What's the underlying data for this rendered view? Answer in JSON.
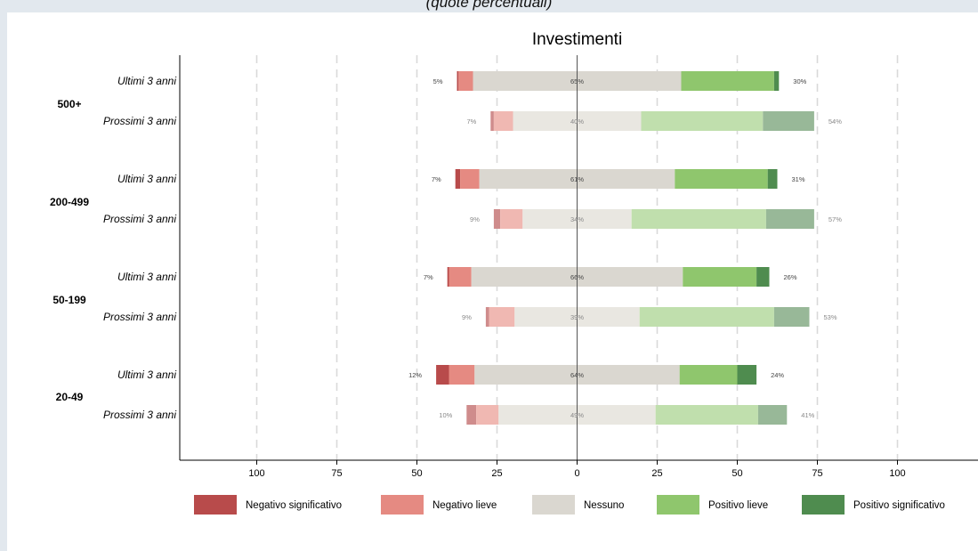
{
  "figure": {
    "caption": "(quote percentuali)"
  },
  "colors": {
    "neg_sig": "#b84b4b",
    "neg_lieve": "#e58a82",
    "nessuno": "#dad7d0",
    "pos_lieve": "#8fc66d",
    "pos_sig": "#4f8c4f",
    "neg_sig_fut": "#cf8c8c",
    "neg_lieve_fut": "#f0b8b2",
    "nessuno_fut": "#e9e7e1",
    "pos_lieve_fut": "#c0dfad",
    "pos_sig_fut": "#98b898",
    "zero_line": "#555555",
    "grid": "#d9d9d9"
  },
  "chart_data": {
    "type": "bar",
    "orientation": "horizontal",
    "stacking": "diverging",
    "title": "Investimenti",
    "xlim": [
      -125,
      125
    ],
    "xticks": [
      -100,
      -75,
      -50,
      -25,
      0,
      25,
      50,
      75,
      100
    ],
    "xtick_labels": [
      "100",
      "75",
      "50",
      "25",
      "0",
      "25",
      "50",
      "75",
      "100"
    ],
    "grid": "vertical dashed",
    "legend_position": "bottom",
    "series": [
      {
        "key": "neg_sig",
        "name": "Negativo significativo"
      },
      {
        "key": "neg_lieve",
        "name": "Negativo lieve"
      },
      {
        "key": "nessuno",
        "name": "Nessuno"
      },
      {
        "key": "pos_lieve",
        "name": "Positivo lieve"
      },
      {
        "key": "pos_sig",
        "name": "Positivo significativo"
      }
    ],
    "groups": [
      {
        "name": "500+",
        "rows": [
          {
            "label": "Ultimi 3 anni",
            "future": false,
            "neg_sig": 0.5,
            "neg_lieve": 4.5,
            "nessuno": 65,
            "pos_lieve": 29,
            "pos_sig": 1.5,
            "neg_total_label": "5%",
            "nessuno_label": "65%",
            "pos_total_label": "30%"
          },
          {
            "label": "Prossimi 3 anni",
            "future": true,
            "neg_sig": 1,
            "neg_lieve": 6,
            "nessuno": 40,
            "pos_lieve": 38,
            "pos_sig": 16,
            "neg_total_label": "7%",
            "nessuno_label": "40%",
            "pos_total_label": "54%"
          }
        ]
      },
      {
        "name": "200-499",
        "rows": [
          {
            "label": "Ultimi 3 anni",
            "future": false,
            "neg_sig": 1.5,
            "neg_lieve": 6,
            "nessuno": 61,
            "pos_lieve": 29,
            "pos_sig": 3,
            "neg_total_label": "7%",
            "nessuno_label": "61%",
            "pos_total_label": "31%"
          },
          {
            "label": "Prossimi 3 anni",
            "future": true,
            "neg_sig": 2,
            "neg_lieve": 7,
            "nessuno": 34,
            "pos_lieve": 42,
            "pos_sig": 15,
            "neg_total_label": "9%",
            "nessuno_label": "34%",
            "pos_total_label": "57%"
          }
        ]
      },
      {
        "name": "50-199",
        "rows": [
          {
            "label": "Ultimi 3 anni",
            "future": false,
            "neg_sig": 0.5,
            "neg_lieve": 7,
            "nessuno": 66,
            "pos_lieve": 23,
            "pos_sig": 4,
            "neg_total_label": "7%",
            "nessuno_label": "66%",
            "pos_total_label": "26%"
          },
          {
            "label": "Prossimi 3 anni",
            "future": true,
            "neg_sig": 1,
            "neg_lieve": 8,
            "nessuno": 39,
            "pos_lieve": 42,
            "pos_sig": 11,
            "neg_total_label": "9%",
            "nessuno_label": "39%",
            "pos_total_label": "53%"
          }
        ]
      },
      {
        "name": "20-49",
        "rows": [
          {
            "label": "Ultimi 3 anni",
            "future": false,
            "neg_sig": 4,
            "neg_lieve": 8,
            "nessuno": 64,
            "pos_lieve": 18,
            "pos_sig": 6,
            "neg_total_label": "12%",
            "nessuno_label": "64%",
            "pos_total_label": "24%"
          },
          {
            "label": "Prossimi 3 anni",
            "future": true,
            "neg_sig": 3,
            "neg_lieve": 7,
            "nessuno": 49,
            "pos_lieve": 32,
            "pos_sig": 9,
            "neg_total_label": "10%",
            "nessuno_label": "49%",
            "pos_total_label": "41%"
          }
        ]
      }
    ]
  }
}
